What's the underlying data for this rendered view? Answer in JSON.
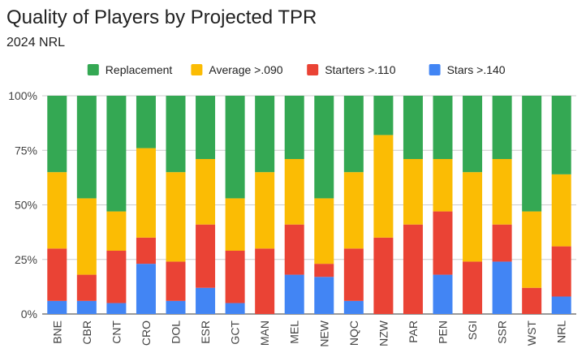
{
  "chart_data": {
    "type": "bar",
    "stacked": true,
    "percent_stacked": true,
    "title": "Quality of Players by Projected TPR",
    "subtitle": "2024 NRL",
    "legend_position": "top",
    "grid": true,
    "ylim": [
      0,
      100
    ],
    "y_ticks": [
      "0%",
      "25%",
      "50%",
      "75%",
      "100%"
    ],
    "categories": [
      "BNE",
      "CBR",
      "CNT",
      "CRO",
      "DOL",
      "ESR",
      "GCT",
      "MAN",
      "MEL",
      "NEW",
      "NQC",
      "NZW",
      "PAR",
      "PEN",
      "SGI",
      "SSR",
      "WST",
      "NRL"
    ],
    "series": [
      {
        "name": "Replacement",
        "color": "#34a853",
        "values": [
          35,
          47,
          53,
          24,
          35,
          29,
          47,
          35,
          29,
          47,
          35,
          18,
          29,
          29,
          35,
          29,
          53,
          36
        ]
      },
      {
        "name": "Average >.090",
        "color": "#fbbc04",
        "values": [
          35,
          35,
          18,
          41,
          41,
          30,
          24,
          35,
          30,
          30,
          35,
          47,
          30,
          24,
          41,
          30,
          35,
          33
        ]
      },
      {
        "name": "Starters >.110",
        "color": "#ea4335",
        "values": [
          24,
          12,
          24,
          12,
          18,
          29,
          24,
          30,
          23,
          6,
          24,
          35,
          41,
          29,
          24,
          17,
          12,
          23
        ]
      },
      {
        "name": "Stars >.140",
        "color": "#4285f4",
        "values": [
          6,
          6,
          5,
          23,
          6,
          12,
          5,
          0,
          18,
          17,
          6,
          0,
          0,
          18,
          0,
          24,
          0,
          8
        ]
      }
    ]
  }
}
